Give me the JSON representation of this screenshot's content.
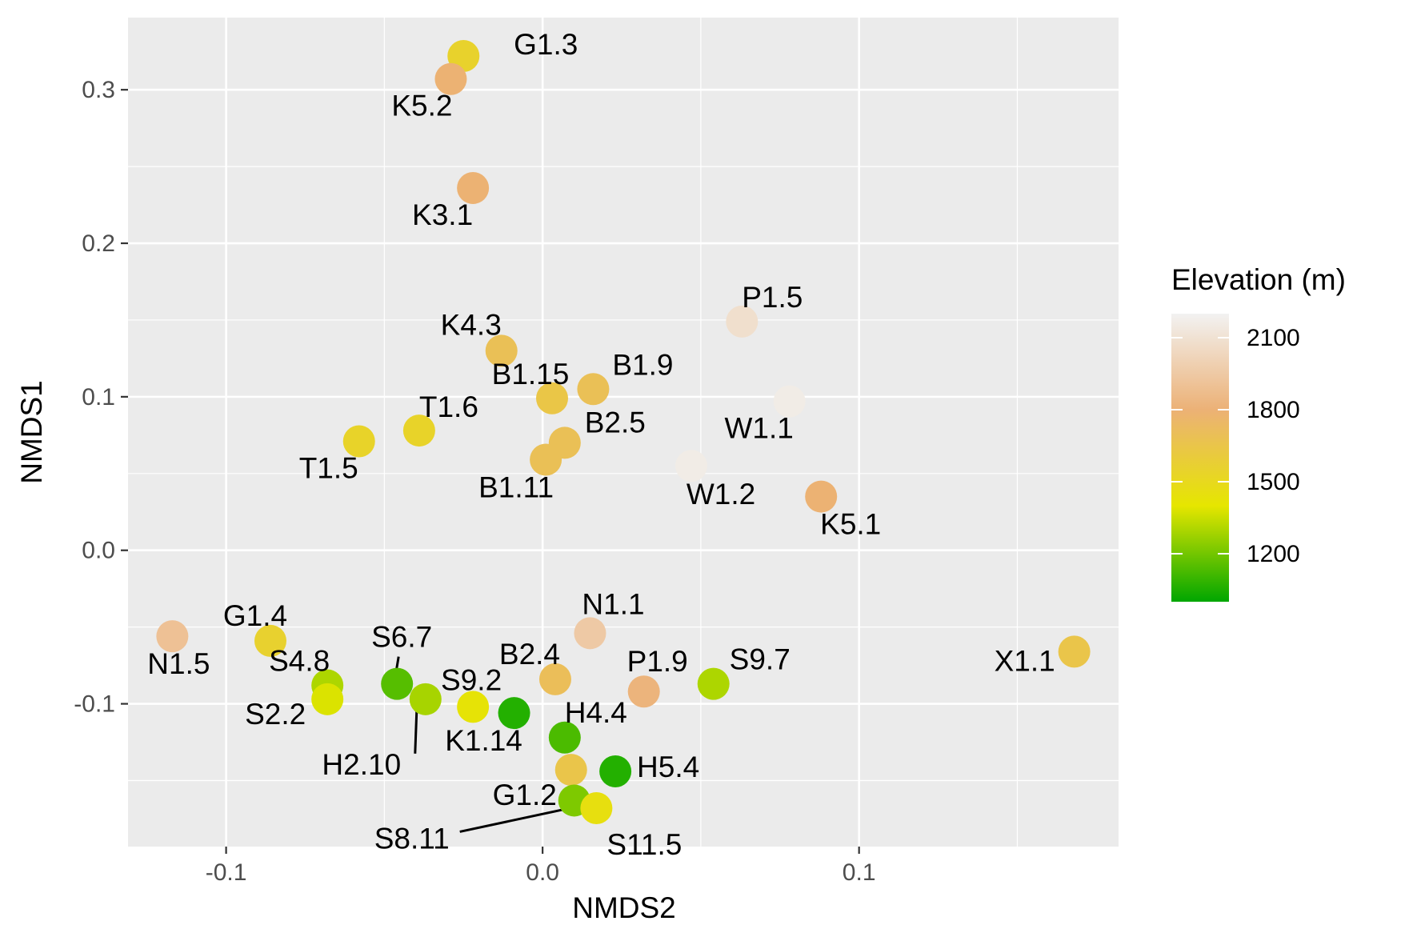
{
  "chart_data": {
    "type": "scatter",
    "title": "",
    "xlabel": "NMDS2",
    "ylabel": "NMDS1",
    "xlim": [
      -0.131,
      0.182
    ],
    "ylim": [
      -0.193,
      0.347
    ],
    "x_ticks": [
      -0.1,
      0.0,
      0.1
    ],
    "x_tick_labels": [
      "-0.1",
      "0.0",
      "0.1"
    ],
    "y_ticks": [
      -0.1,
      0.0,
      0.1,
      0.2,
      0.3
    ],
    "y_tick_labels": [
      "-0.1",
      "0.0",
      "0.1",
      "0.2",
      "0.3"
    ],
    "grid": true,
    "background": "#ebebeb",
    "legend": {
      "title": "Elevation (m)",
      "placement": "right",
      "range": [
        1000,
        2200
      ],
      "breaks": [
        1200,
        1500,
        1800,
        2100
      ],
      "break_labels": [
        "1200",
        "1500",
        "1800",
        "2100"
      ],
      "colors": [
        "#00a600",
        "#e6e600",
        "#ecb176",
        "#f2f2f2"
      ]
    },
    "points": [
      {
        "label": "G1.3",
        "x": -0.025,
        "y": 0.322,
        "elevation": 1550
      },
      {
        "label": "K5.2",
        "x": -0.029,
        "y": 0.307,
        "elevation": 1790
      },
      {
        "label": "K3.1",
        "x": -0.022,
        "y": 0.236,
        "elevation": 1790
      },
      {
        "label": "P1.5",
        "x": 0.063,
        "y": 0.149,
        "elevation": 2080
      },
      {
        "label": "K4.3",
        "x": -0.013,
        "y": 0.13,
        "elevation": 1690
      },
      {
        "label": "B1.15",
        "x": 0.003,
        "y": 0.099,
        "elevation": 1640
      },
      {
        "label": "B1.9",
        "x": 0.016,
        "y": 0.105,
        "elevation": 1690
      },
      {
        "label": "W1.1",
        "x": 0.078,
        "y": 0.097,
        "elevation": 2160
      },
      {
        "label": "T1.6",
        "x": -0.039,
        "y": 0.078,
        "elevation": 1540
      },
      {
        "label": "T1.5",
        "x": -0.058,
        "y": 0.071,
        "elevation": 1540
      },
      {
        "label": "B2.5",
        "x": 0.007,
        "y": 0.07,
        "elevation": 1690
      },
      {
        "label": "B1.11",
        "x": 0.001,
        "y": 0.059,
        "elevation": 1690
      },
      {
        "label": "W1.2",
        "x": 0.047,
        "y": 0.055,
        "elevation": 2160
      },
      {
        "label": "K5.1",
        "x": 0.088,
        "y": 0.035,
        "elevation": 1790
      },
      {
        "label": "N1.5",
        "x": -0.117,
        "y": -0.056,
        "elevation": 1900
      },
      {
        "label": "G1.4",
        "x": -0.086,
        "y": -0.059,
        "elevation": 1560
      },
      {
        "label": "N1.1",
        "x": 0.015,
        "y": -0.054,
        "elevation": 1950
      },
      {
        "label": "X1.1",
        "x": 0.168,
        "y": -0.066,
        "elevation": 1650
      },
      {
        "label": "S6.7",
        "x": -0.046,
        "y": -0.087,
        "elevation": 1150
      },
      {
        "label": "S4.8",
        "x": -0.068,
        "y": -0.088,
        "elevation": 1300
      },
      {
        "label": "S2.2",
        "x": -0.068,
        "y": -0.097,
        "elevation": 1380
      },
      {
        "label": "H2.10",
        "x": -0.037,
        "y": -0.097,
        "elevation": 1290
      },
      {
        "label": "S9.2",
        "x": -0.022,
        "y": -0.102,
        "elevation": 1420
      },
      {
        "label": "K1.14",
        "x": -0.009,
        "y": -0.106,
        "elevation": 1060
      },
      {
        "label": "B2.4",
        "x": 0.004,
        "y": -0.084,
        "elevation": 1700
      },
      {
        "label": "P1.9",
        "x": 0.032,
        "y": -0.092,
        "elevation": 1820
      },
      {
        "label": "S9.7",
        "x": 0.054,
        "y": -0.087,
        "elevation": 1300
      },
      {
        "label": "H4.4",
        "x": 0.007,
        "y": -0.122,
        "elevation": 1130
      },
      {
        "label": "H5.4",
        "x": 0.023,
        "y": -0.144,
        "elevation": 1060
      },
      {
        "label": "G1.2",
        "x": 0.009,
        "y": -0.143,
        "elevation": 1650
      },
      {
        "label": "S8.11",
        "x": 0.01,
        "y": -0.163,
        "elevation": 1220
      },
      {
        "label": "S11.5",
        "x": 0.017,
        "y": -0.168,
        "elevation": 1450
      }
    ]
  }
}
